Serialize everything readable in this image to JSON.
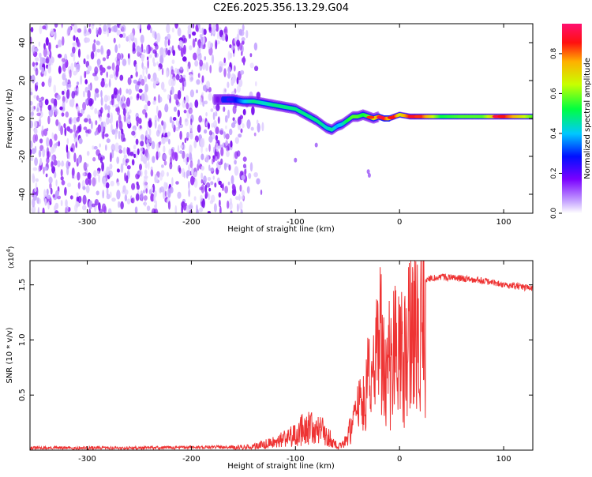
{
  "title": "C2E6.2025.356.13.29.G04",
  "chart_data": [
    {
      "type": "heatmap",
      "title": "C2E6.2025.356.13.29.G04",
      "xlabel": "Height of straight line (km)",
      "ylabel": "Frequency (Hz)",
      "xlim": [
        -355,
        128
      ],
      "ylim": [
        -50,
        50
      ],
      "xticks": [
        -300,
        -200,
        -100,
        0,
        100
      ],
      "xtick_labels": [
        "-300",
        "-200",
        "-100",
        "0",
        "100"
      ],
      "yticks": [
        -40,
        -20,
        0,
        20,
        40
      ],
      "ytick_labels": [
        "-40",
        "-20",
        "0",
        "20",
        "40"
      ],
      "colorbar": {
        "label": "Normalized spectral amplitude",
        "range": [
          0,
          0.95
        ],
        "ticks": [
          0,
          0.2,
          0.4,
          0.6,
          0.8
        ],
        "tick_labels": [
          "0.0",
          "0.2",
          "0.4",
          "0.6",
          "0.8"
        ]
      },
      "signal_track": {
        "x": [
          -175,
          -160,
          -150,
          -140,
          -130,
          -120,
          -110,
          -100,
          -90,
          -80,
          -75,
          -70,
          -65,
          -60,
          -55,
          -50,
          -45,
          -40,
          -35,
          -30,
          -25,
          -20,
          -15,
          -10,
          -5,
          0,
          10,
          20,
          40,
          60,
          80,
          100,
          128
        ],
        "freq": [
          10,
          10,
          9,
          9,
          8,
          7,
          6,
          5,
          2,
          -1,
          -3,
          -5,
          -6,
          -4,
          -3,
          -1,
          1,
          1,
          2,
          1,
          0,
          1,
          0,
          0,
          1,
          2,
          1,
          1,
          1,
          1,
          1,
          1,
          1
        ],
        "amplitude": [
          0.2,
          0.25,
          0.4,
          0.5,
          0.45,
          0.5,
          0.5,
          0.5,
          0.5,
          0.5,
          0.5,
          0.45,
          0.5,
          0.4,
          0.45,
          0.55,
          0.6,
          0.6,
          0.55,
          0.6,
          0.7,
          0.85,
          0.9,
          0.75,
          0.9,
          0.7,
          0.9,
          0.9,
          0.55,
          0.6,
          0.6,
          0.9,
          0.6
        ]
      }
    },
    {
      "type": "line",
      "xlabel": "Height of straight line (km)",
      "ylabel": "SNR (10 * v/v)",
      "y_multiplier": "(x10",
      "y_exponent": "4",
      "y_close": ")",
      "xlim": [
        -355,
        128
      ],
      "ylim": [
        0,
        1.72
      ],
      "xticks": [
        -300,
        -200,
        -100,
        0,
        100
      ],
      "xtick_labels": [
        "-300",
        "-200",
        "-100",
        "0",
        "100"
      ],
      "yticks": [
        0.5,
        1.0,
        1.5
      ],
      "ytick_labels": [
        "0.5",
        "1.0",
        "1.5"
      ],
      "series": [
        {
          "name": "SNR",
          "color": "#ee3333",
          "x": [
            -355,
            -250,
            -160,
            -140,
            -120,
            -110,
            -100,
            -95,
            -90,
            -85,
            -80,
            -75,
            -70,
            -65,
            -60,
            -55,
            -50,
            -45,
            -40,
            -35,
            -30,
            -25,
            -20,
            -18,
            -15,
            -10,
            -5,
            0,
            5,
            10,
            20,
            30,
            40,
            60,
            80,
            100,
            128
          ],
          "y": [
            0.02,
            0.02,
            0.03,
            0.05,
            0.1,
            0.15,
            0.2,
            0.25,
            0.3,
            0.3,
            0.28,
            0.25,
            0.2,
            0.12,
            0.05,
            0.06,
            0.15,
            0.35,
            0.5,
            0.65,
            0.85,
            1.0,
            1.2,
            1.5,
            1.05,
            1.1,
            1.2,
            1.3,
            1.35,
            1.42,
            1.52,
            1.56,
            1.57,
            1.56,
            1.54,
            1.5,
            1.47
          ]
        }
      ]
    }
  ]
}
